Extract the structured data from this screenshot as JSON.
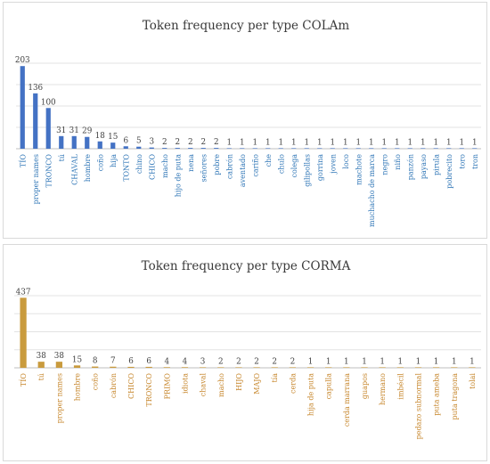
{
  "chart_data": [
    {
      "type": "bar",
      "title": "Token frequency per type COLAm",
      "color": "#4472C4",
      "label_color": "#2E75B6",
      "categories": [
        "TÍO",
        "proper names",
        "TRONCO",
        "tú",
        "CHAVAL",
        "hombre",
        "coño",
        "hija",
        "TONTO",
        "chino",
        "CHICO",
        "macho",
        "hijo de puta",
        "nena",
        "señores",
        "pobre",
        "cabrón",
        "aventado",
        "cariño",
        "che",
        "chulo",
        "colega",
        "gilipollas",
        "gorrina",
        "joven",
        "loco",
        "machote",
        "muchacho de marca",
        "negro",
        "niño",
        "panzón",
        "payaso",
        "pirula",
        "pobrecito",
        "toro",
        "tron"
      ],
      "values": [
        203,
        136,
        100,
        31,
        31,
        29,
        18,
        15,
        6,
        5,
        3,
        2,
        2,
        2,
        2,
        2,
        1,
        1,
        1,
        1,
        1,
        1,
        1,
        1,
        1,
        1,
        1,
        1,
        1,
        1,
        1,
        1,
        1,
        1,
        1,
        1
      ],
      "ylim": [
        0,
        210
      ],
      "grid": true,
      "legend": false
    },
    {
      "type": "bar",
      "title": "Token frequency per type CORMA",
      "color": "#C99B3E",
      "label_color": "#C6862B",
      "categories": [
        "TÍO",
        "tú",
        "proper names",
        "hombre",
        "coño",
        "cabrón",
        "CHICO",
        "TRONCO",
        "PRIMO",
        "idiota",
        "chaval",
        "macho",
        "HIJO",
        "MAJO",
        "tía",
        "cerda",
        "hija de puta",
        "capulla",
        "cerda marrana",
        "guapos",
        "hermano",
        "imbécil",
        "pedazo subnormal",
        "puta ameba",
        "puta tragona",
        "tolai"
      ],
      "values": [
        437,
        38,
        38,
        15,
        8,
        7,
        6,
        6,
        4,
        4,
        3,
        2,
        2,
        2,
        2,
        2,
        1,
        1,
        1,
        1,
        1,
        1,
        1,
        1,
        1,
        1
      ],
      "ylim": [
        0,
        450
      ],
      "grid": true,
      "legend": false
    }
  ]
}
